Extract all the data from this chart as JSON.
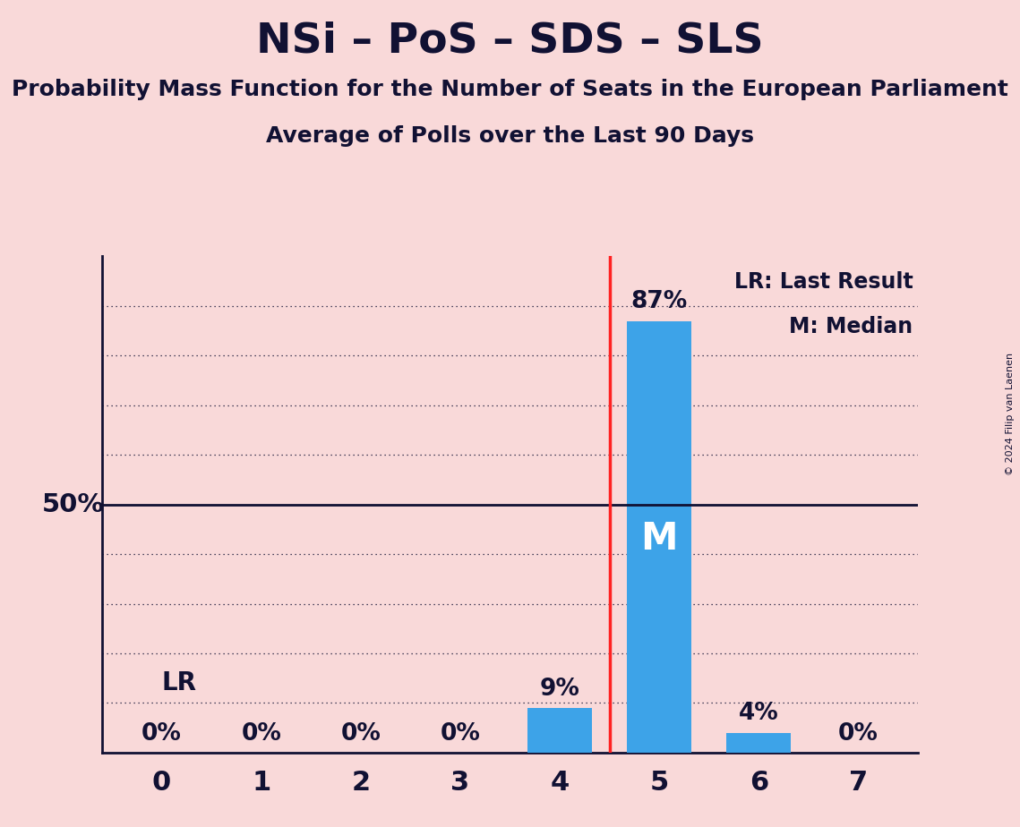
{
  "title": "NSi – PoS – SDS – SLS",
  "subtitle1": "Probability Mass Function for the Number of Seats in the European Parliament",
  "subtitle2": "Average of Polls over the Last 90 Days",
  "background_color": "#f9d9d9",
  "bar_color": "#3da3e8",
  "categories": [
    0,
    1,
    2,
    3,
    4,
    5,
    6,
    7
  ],
  "values": [
    0,
    0,
    0,
    0,
    9,
    87,
    4,
    0
  ],
  "median_seat": 5,
  "lr_seat": 4,
  "fifty_pct_line": 50,
  "grid_color": "#111133",
  "axis_color": "#111133",
  "title_color": "#111133",
  "legend_text": [
    "LR: Last Result",
    "M: Median"
  ],
  "lr_line_color": "#ff2222",
  "copyright_text": "© 2024 Filip van Laenen",
  "ylim": [
    0,
    100
  ],
  "figsize": [
    11.39,
    9.24
  ],
  "title_fontsize": 34,
  "subtitle_fontsize": 18,
  "tick_fontsize": 22,
  "label_fontsize": 19,
  "legend_fontsize": 17,
  "fifty_label_fontsize": 21,
  "M_fontsize": 30,
  "LR_fontsize": 20
}
